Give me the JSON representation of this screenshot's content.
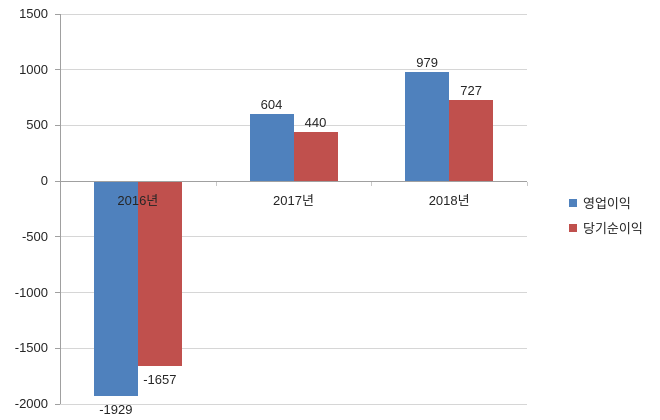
{
  "chart_data": {
    "type": "bar",
    "title": "",
    "categories": [
      "2016년",
      "2017년",
      "2018년"
    ],
    "series": [
      {
        "name": "영업이익",
        "color": "#4F81BD",
        "values": [
          -1929,
          604,
          979
        ]
      },
      {
        "name": "당기순이익",
        "color": "#C0504D",
        "values": [
          -1657,
          440,
          727
        ]
      }
    ],
    "ylim": [
      -2000,
      1500
    ],
    "yticks": [
      1500,
      1000,
      500,
      0,
      -500,
      -1000,
      -1500,
      -2000
    ],
    "grid": true,
    "data_labels": true,
    "legend_position": "right",
    "colors": {
      "gridline": "#d6d6d6",
      "axis_line": "#a0a0a0",
      "label_text": "#262626"
    }
  }
}
